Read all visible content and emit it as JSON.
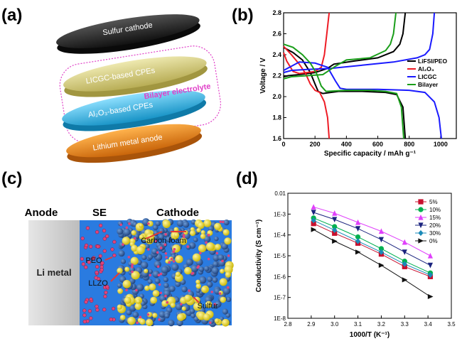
{
  "panels": {
    "a": {
      "letter": "(a)",
      "layers": [
        {
          "label": "Sulfur cathode",
          "color": "#1a1a1a"
        },
        {
          "label": "LICGC-based CPEs",
          "color": "#d6cf86"
        },
        {
          "label": "Al₂O₃-based CPEs",
          "color": "#2ab2e3"
        },
        {
          "label": "Lithium metal anode",
          "color": "#e88a1b"
        }
      ],
      "annotation": "Bilayer electrolyte",
      "annotation_color": "#e040c8"
    },
    "b": {
      "letter": "(b)"
    },
    "c": {
      "letter": "(c)",
      "headers": {
        "anode": "Anode",
        "se": "SE",
        "cathode": "Cathode"
      },
      "labels": {
        "li_metal": "Li metal",
        "peo": "PEO",
        "llzo": "LLZO",
        "carbon_foam": "Carbon foam",
        "sulfur": "Sulfur"
      }
    },
    "d": {
      "letter": "(d)"
    }
  },
  "chart_data": [
    {
      "type": "line",
      "xlabel": "Specific capacity / mAh g⁻¹",
      "ylabel": "Voltage / V",
      "xlim": [
        0,
        1100
      ],
      "ylim": [
        1.6,
        2.8
      ],
      "xticks": [
        "0",
        "200",
        "400",
        "600",
        "800",
        "1000"
      ],
      "yticks": [
        "1.6",
        "1.8",
        "2.0",
        "2.2",
        "2.4",
        "2.6",
        "2.8"
      ],
      "legend_position": "right",
      "series": [
        {
          "name": "LiFSI/PEO",
          "color": "#000000",
          "discharge": [
            [
              0,
              2.47
            ],
            [
              60,
              2.42
            ],
            [
              120,
              2.35
            ],
            [
              170,
              2.23
            ],
            [
              200,
              2.12
            ],
            [
              220,
              2.05
            ],
            [
              250,
              2.03
            ],
            [
              350,
              2.05
            ],
            [
              500,
              2.05
            ],
            [
              650,
              2.04
            ],
            [
              720,
              2.02
            ],
            [
              760,
              1.9
            ],
            [
              775,
              1.6
            ]
          ],
          "charge": [
            [
              0,
              2.19
            ],
            [
              30,
              2.2
            ],
            [
              100,
              2.21
            ],
            [
              200,
              2.23
            ],
            [
              280,
              2.27
            ],
            [
              320,
              2.31
            ],
            [
              450,
              2.34
            ],
            [
              600,
              2.37
            ],
            [
              700,
              2.43
            ],
            [
              740,
              2.5
            ],
            [
              760,
              2.6
            ],
            [
              775,
              2.8
            ]
          ]
        },
        {
          "name": "Al₂O₃",
          "color": "#ee1c25",
          "discharge": [
            [
              0,
              2.48
            ],
            [
              50,
              2.4
            ],
            [
              100,
              2.31
            ],
            [
              140,
              2.22
            ],
            [
              170,
              2.12
            ],
            [
              200,
              2.06
            ],
            [
              230,
              2.04
            ],
            [
              260,
              1.95
            ],
            [
              280,
              1.8
            ],
            [
              290,
              1.6
            ]
          ],
          "charge": [
            [
              0,
              2.42
            ],
            [
              20,
              2.34
            ],
            [
              60,
              2.24
            ],
            [
              100,
              2.22
            ],
            [
              150,
              2.23
            ],
            [
              200,
              2.24
            ],
            [
              240,
              2.28
            ],
            [
              260,
              2.4
            ],
            [
              275,
              2.6
            ],
            [
              290,
              2.8
            ]
          ]
        },
        {
          "name": "LICGC",
          "color": "#1a1aff",
          "discharge": [
            [
              0,
              2.25
            ],
            [
              100,
              2.33
            ],
            [
              200,
              2.32
            ],
            [
              280,
              2.28
            ],
            [
              330,
              2.15
            ],
            [
              360,
              2.08
            ],
            [
              400,
              2.07
            ],
            [
              600,
              2.07
            ],
            [
              800,
              2.06
            ],
            [
              900,
              2.04
            ],
            [
              960,
              1.95
            ],
            [
              990,
              1.8
            ],
            [
              1005,
              1.6
            ]
          ],
          "charge": [
            [
              0,
              2.23
            ],
            [
              50,
              2.25
            ],
            [
              150,
              2.26
            ],
            [
              300,
              2.27
            ],
            [
              500,
              2.3
            ],
            [
              700,
              2.33
            ],
            [
              850,
              2.37
            ],
            [
              900,
              2.4
            ],
            [
              930,
              2.45
            ],
            [
              950,
              2.6
            ],
            [
              960,
              2.8
            ]
          ]
        },
        {
          "name": "Bilayer",
          "color": "#1a9e1a",
          "discharge": [
            [
              0,
              2.5
            ],
            [
              60,
              2.47
            ],
            [
              120,
              2.4
            ],
            [
              170,
              2.32
            ],
            [
              210,
              2.22
            ],
            [
              240,
              2.1
            ],
            [
              270,
              2.05
            ],
            [
              400,
              2.06
            ],
            [
              550,
              2.06
            ],
            [
              650,
              2.05
            ],
            [
              720,
              2.03
            ],
            [
              750,
              1.9
            ],
            [
              765,
              1.6
            ]
          ],
          "charge": [
            [
              0,
              2.17
            ],
            [
              50,
              2.19
            ],
            [
              150,
              2.2
            ],
            [
              250,
              2.21
            ],
            [
              330,
              2.29
            ],
            [
              400,
              2.35
            ],
            [
              550,
              2.37
            ],
            [
              650,
              2.44
            ],
            [
              680,
              2.5
            ],
            [
              700,
              2.6
            ],
            [
              715,
              2.8
            ]
          ]
        }
      ]
    },
    {
      "type": "line",
      "xlabel": "1000/T (K⁻¹)",
      "ylabel": "Conductivity (S cm⁻¹)",
      "xlim": [
        2.8,
        3.5
      ],
      "ylim_log10": [
        -8,
        -2
      ],
      "xticks": [
        "2.8",
        "2.9",
        "3.0",
        "3.1",
        "3.2",
        "3.3",
        "3.4",
        "3.5"
      ],
      "yticks": [
        "1E-8",
        "1E-7",
        "1E-6",
        "1E-5",
        "1E-4",
        "1E-3",
        "0.01"
      ],
      "legend_position": "top-right",
      "x": [
        2.91,
        3.0,
        3.1,
        3.2,
        3.3,
        3.41
      ],
      "series": [
        {
          "name": "5%",
          "color": "#c8102e",
          "marker": "square",
          "values": [
            0.00035,
            0.00012,
            4e-05,
            1.2e-05,
            3e-06,
            1e-06
          ]
        },
        {
          "name": "10%",
          "color": "#00b050",
          "marker": "circle",
          "values": [
            0.00065,
            0.00025,
            8e-05,
            2.2e-05,
            5.5e-06,
            1.5e-06
          ]
        },
        {
          "name": "15%",
          "color": "#e040fb",
          "marker": "triangle-up",
          "values": [
            0.0022,
            0.0011,
            0.0004,
            0.00015,
            4.5e-05,
            1e-05
          ]
        },
        {
          "name": "20%",
          "color": "#1a237e",
          "marker": "triangle-down",
          "values": [
            0.0012,
            0.00055,
            0.0002,
            6e-05,
            1.5e-05,
            3.5e-06
          ]
        },
        {
          "name": "30%",
          "color": "#1a8ab8",
          "marker": "diamond",
          "values": [
            0.0005,
            0.00017,
            5e-05,
            1.5e-05,
            4e-06,
            1.2e-06
          ]
        },
        {
          "name": "0%",
          "color": "#111111",
          "marker": "triangle-right",
          "values": [
            0.00018,
            5e-05,
            1.5e-05,
            3.5e-06,
            7e-07,
            1.1e-07
          ]
        }
      ]
    }
  ]
}
